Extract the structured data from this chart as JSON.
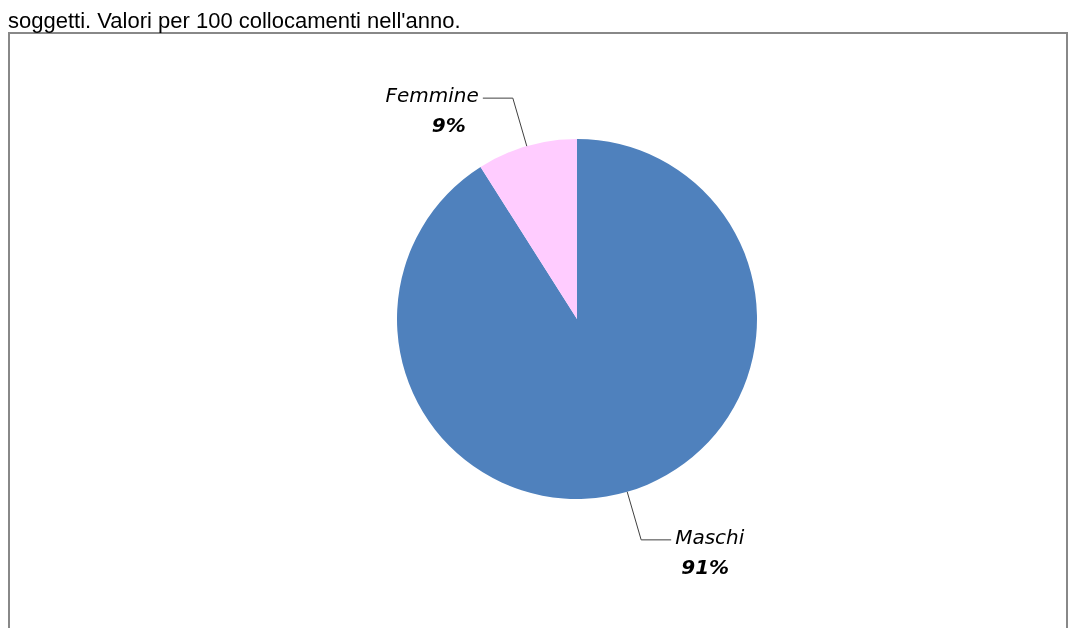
{
  "chart_data": {
    "type": "pie",
    "title": "soggetti. Valori per 100 collocamenti nell'anno.",
    "categories": [
      "Maschi",
      "Femmine"
    ],
    "values": [
      91,
      9
    ],
    "value_labels": [
      "91%",
      "9%"
    ],
    "colors": [
      "#4f81bd",
      "#ffccff"
    ]
  }
}
